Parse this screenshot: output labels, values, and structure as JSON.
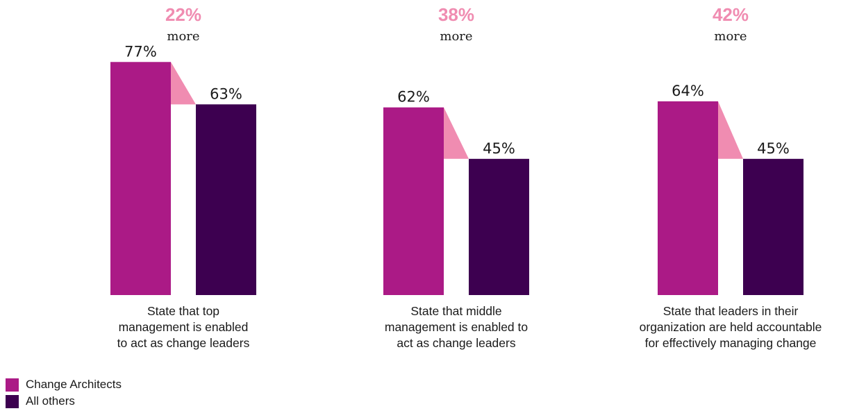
{
  "chart_data": {
    "type": "bar",
    "categories": [
      [
        "State that top",
        "management is enabled",
        "to act as change leaders"
      ],
      [
        "State that middle",
        "management is enabled to",
        "act as change leaders"
      ],
      [
        "State that leaders in their",
        "organization are held accountable",
        "for effectively managing change"
      ]
    ],
    "series": [
      {
        "name": "Change Architects",
        "values": [
          77,
          62,
          64
        ],
        "color": "#ab1a86"
      },
      {
        "name": "All others",
        "values": [
          63,
          45,
          45
        ],
        "color": "#3d0050"
      }
    ],
    "value_labels": [
      [
        "77%",
        "62%",
        "64%"
      ],
      [
        "63%",
        "45%",
        "45%"
      ]
    ],
    "differences": [
      {
        "value": "22%",
        "label": "more"
      },
      {
        "value": "38%",
        "label": "more"
      },
      {
        "value": "42%",
        "label": "more"
      }
    ],
    "difference_color": "#f08cb1",
    "ylim": [
      0,
      100
    ],
    "legend_position": "bottom-left",
    "grid": false
  },
  "legend": [
    {
      "label": "Change Architects",
      "color": "#ab1a86"
    },
    {
      "label": "All others",
      "color": "#3d0050"
    }
  ]
}
